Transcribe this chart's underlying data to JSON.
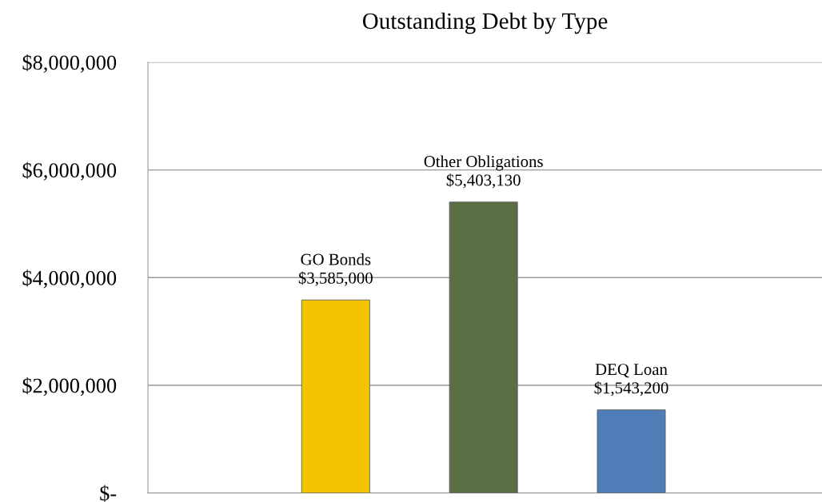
{
  "chart_data": {
    "type": "bar",
    "title": "Outstanding Debt by Type",
    "categories": [
      "GO Bonds",
      "Other Obligations",
      "DEQ Loan"
    ],
    "values": [
      3585000,
      5403130,
      1543200
    ],
    "value_labels": [
      "$3,585,000",
      "$5,403,130",
      "$1,543,200"
    ],
    "colors": [
      "#f2c500",
      "#5b6f45",
      "#4f7db8"
    ],
    "ylim": [
      0,
      8000000
    ],
    "yticks": [
      {
        "value": 0,
        "label": "$-"
      },
      {
        "value": 2000000,
        "label": "$2,000,000"
      },
      {
        "value": 4000000,
        "label": "$4,000,000"
      },
      {
        "value": 6000000,
        "label": "$6,000,000"
      },
      {
        "value": 8000000,
        "label": "$8,000,000"
      }
    ],
    "grid": "y",
    "tick_labels": "y"
  }
}
